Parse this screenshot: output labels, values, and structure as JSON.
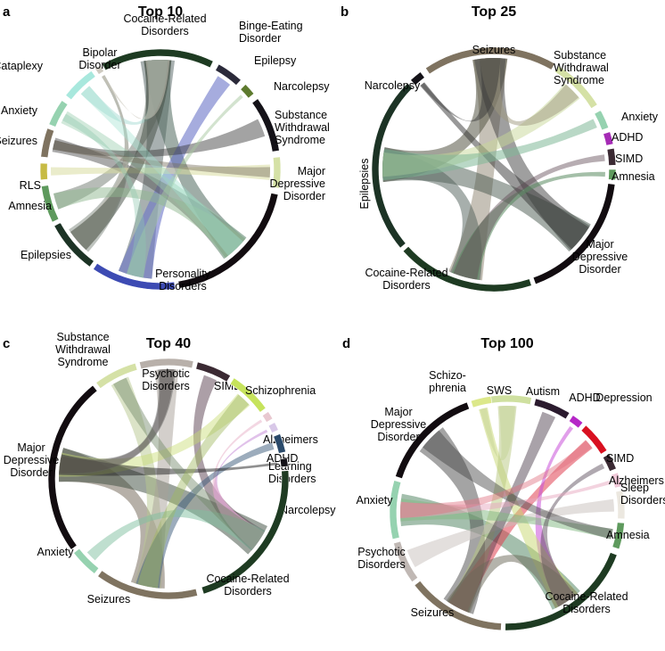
{
  "panels": [
    {
      "letter": "a",
      "title": "Top 10",
      "segments": [
        {
          "label": "Cocaine-Related\nDisorders",
          "color": "#1e3b22"
        },
        {
          "label": "Binge-Eating\nDisorder",
          "color": "#2b2a3a"
        },
        {
          "label": "Epilepsy",
          "color": "#5d7a2e"
        },
        {
          "label": "Narcolepsy",
          "color": "#141218"
        },
        {
          "label": "Substance\nWithdrawal\nSyndrome",
          "color": "#d5e1a6"
        },
        {
          "label": "Major\nDepressive\nDisorder",
          "color": "#120c10"
        },
        {
          "label": "Personality\nDisorders",
          "color": "#3d4bb3"
        },
        {
          "label": "Epilepsies",
          "color": "#1c3325"
        },
        {
          "label": "Amnesia",
          "color": "#5e9a5d"
        },
        {
          "label": "RLS",
          "color": "#c7bb45"
        },
        {
          "label": "Seizures",
          "color": "#7f7360"
        },
        {
          "label": "Anxiety",
          "color": "#96d2b0"
        },
        {
          "label": "Cataplexy",
          "color": "#a8e8dd"
        },
        {
          "label": "Bipolar\nDisorder",
          "color": "#cfcbc1"
        }
      ]
    },
    {
      "letter": "b",
      "title": "Top 25",
      "segments": [
        {
          "label": "Seizures",
          "color": "#7f7360"
        },
        {
          "label": "Substance\nWithdrawal\nSyndrome",
          "color": "#d5e1a6"
        },
        {
          "label": "Anxiety",
          "color": "#96d2b0"
        },
        {
          "label": "ADHD",
          "color": "#a52bb5"
        },
        {
          "label": "SIMD",
          "color": "#3b2a33"
        },
        {
          "label": "Amnesia",
          "color": "#5e9a5d"
        },
        {
          "label": "Major\nDepressive\nDisorder",
          "color": "#120c10"
        },
        {
          "label": "Cocaine-Related\nDisorders",
          "color": "#1e3b22"
        },
        {
          "label": "Epilepsies",
          "color": "#1c3325"
        },
        {
          "label": "Narcolepsy",
          "color": "#141218"
        }
      ]
    },
    {
      "letter": "c",
      "title": "Top 40",
      "segments": [
        {
          "label": "Psychotic\nDisorders",
          "color": "#b8b0aa"
        },
        {
          "label": "SIMD",
          "color": "#3b2a33"
        },
        {
          "label": "Schizophrenia",
          "color": "#c6e35c"
        },
        {
          "label": "Alzheimers",
          "color": "#e8c8d0"
        },
        {
          "label": "ADHD",
          "color": "#d8c8e8"
        },
        {
          "label": "Learning\nDisorders",
          "color": "#2a4a6a"
        },
        {
          "label": "Narcolepsy",
          "color": "#141218"
        },
        {
          "label": "Cocaine-Related\nDisorders",
          "color": "#1e3b22"
        },
        {
          "label": "Seizures",
          "color": "#7f7360"
        },
        {
          "label": "Anxiety",
          "color": "#96d2b0"
        },
        {
          "label": "Major\nDepressive\nDisorder",
          "color": "#120c10"
        },
        {
          "label": "Substance\nWithdrawal\nSyndrome",
          "color": "#d5e1a6"
        }
      ]
    },
    {
      "letter": "d",
      "title": "Top 100",
      "segments": [
        {
          "label": "SWS",
          "color": "#cfe0a0"
        },
        {
          "label": "Autism",
          "color": "#2b1b2e"
        },
        {
          "label": "ADHD",
          "color": "#b526c7"
        },
        {
          "label": "Depression",
          "color": "#d91020"
        },
        {
          "label": "SIMD",
          "color": "#3b2a33"
        },
        {
          "label": "Alzheimers",
          "color": "#f0c8d8"
        },
        {
          "label": "Sleep\nDisorders",
          "color": "#ece8e0"
        },
        {
          "label": "Amnesia",
          "color": "#5e9a5d"
        },
        {
          "label": "Cocaine-Related\nDisorders",
          "color": "#1e3b22"
        },
        {
          "label": "Seizures",
          "color": "#7f7360"
        },
        {
          "label": "Psychotic\nDisorders",
          "color": "#c0b8b4"
        },
        {
          "label": "Anxiety",
          "color": "#96d2b0"
        },
        {
          "label": "Major\nDepressive\nDisorder",
          "color": "#120c10"
        },
        {
          "label": "Schizo-\nphrenia",
          "color": "#dce88a"
        }
      ]
    }
  ]
}
